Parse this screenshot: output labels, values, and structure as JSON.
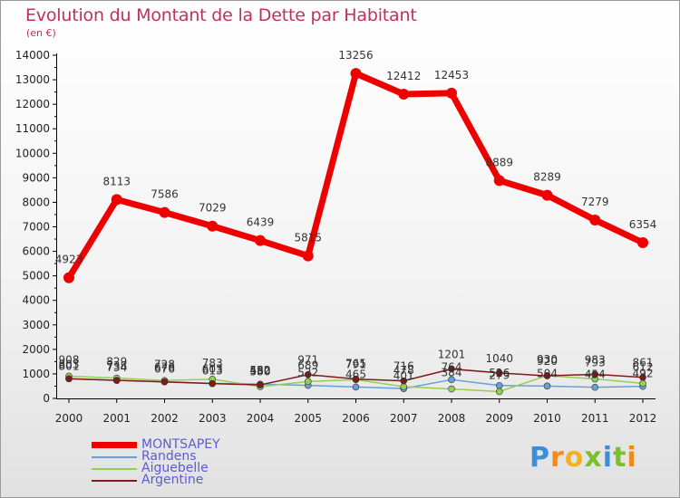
{
  "chart_data": {
    "type": "line",
    "title": "Evolution du Montant de la Dette par Habitant",
    "subtitle": "(en €)",
    "categories": [
      "2000",
      "2001",
      "2002",
      "2003",
      "2004",
      "2005",
      "2006",
      "2007",
      "2008",
      "2009",
      "2010",
      "2011",
      "2012"
    ],
    "ylim": [
      0,
      14000
    ],
    "yticks": [
      0,
      1000,
      2000,
      3000,
      4000,
      5000,
      6000,
      7000,
      8000,
      9000,
      10000,
      11000,
      12000,
      13000,
      14000
    ],
    "ytick_labels": [
      "0",
      "1000",
      "2000",
      "3000",
      "4000",
      "5000",
      "6000",
      "7000",
      "8000",
      "9000",
      "10000",
      "11000",
      "12000",
      "13000",
      "14000"
    ],
    "grid": false,
    "series": [
      {
        "name": "MONTSAPEY",
        "color": "#ee0000",
        "values": [
          4923,
          8113,
          7586,
          7029,
          6439,
          5815,
          13256,
          12412,
          12453,
          8889,
          8289,
          7279,
          6354
        ],
        "labels": [
          "4923",
          "8113",
          "7586",
          "7029",
          "6439",
          "5815",
          "13256",
          "12412",
          "12453",
          "8889",
          "8289",
          "7279",
          "6354"
        ]
      },
      {
        "name": "Randens",
        "color": "#6a9fd4",
        "values": [
          801,
          734,
          676,
          613,
          580,
          532,
          465,
          401,
          764,
          526,
          504,
          454,
          492
        ],
        "labels": [
          "801",
          "734",
          "676",
          "613",
          "580",
          "532",
          "465",
          "401",
          "764",
          "526",
          "504",
          "454",
          "492"
        ]
      },
      {
        "name": "Aiguebelle",
        "color": "#92d050",
        "values": [
          908,
          829,
          728,
          783,
          480,
          689,
          765,
          478,
          384,
          279,
          930,
          793,
          612
        ],
        "labels": [
          "908",
          "829",
          "728",
          "783",
          "480",
          "689",
          "765",
          "478",
          "384",
          "279",
          "930",
          "793",
          "612"
        ]
      },
      {
        "name": "Argentine",
        "color": "#7f1a1a",
        "values": [
          803,
          738,
          676,
          603,
          552,
          971,
          791,
          716,
          1201,
          1040,
          920,
          983,
          861
        ],
        "labels": [
          "803",
          "738",
          "676",
          "603",
          "552",
          "971",
          "791",
          "716",
          "1201",
          "1040",
          "920",
          "983",
          "861"
        ]
      }
    ]
  },
  "legend": {
    "items": [
      {
        "label": "MONTSAPEY",
        "color": "#ee0000"
      },
      {
        "label": "Randens",
        "color": "#6a9fd4"
      },
      {
        "label": "Aiguebelle",
        "color": "#92d050"
      },
      {
        "label": "Argentine",
        "color": "#7f1a1a"
      }
    ]
  },
  "logo": {
    "p": "P",
    "r": "r",
    "o": "o",
    "x": "x",
    "i": "i",
    "t": "t",
    "i2": "i"
  }
}
